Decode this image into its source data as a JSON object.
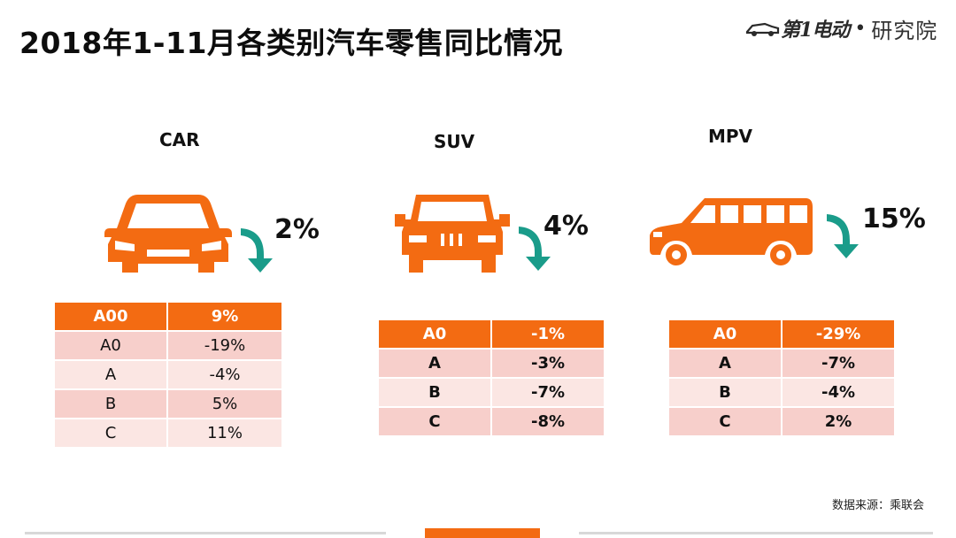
{
  "title": "2018年1-11月各类别汽车零售同比情况",
  "logo": {
    "brand": "第1电动",
    "separator": "•",
    "institute": "研究院"
  },
  "colors": {
    "accent": "#f36b12",
    "arrow": "#1a9c8a",
    "row_dark": "#f7cfcb",
    "row_light": "#fbe6e3"
  },
  "panels": {
    "car": {
      "name": "CAR",
      "change": "2%",
      "icon": "sedan-front-icon",
      "arrow": "down-arrow-icon",
      "rows": [
        [
          "A00",
          "9%"
        ],
        [
          "A0",
          "-19%"
        ],
        [
          "A",
          "-4%"
        ],
        [
          "B",
          "5%"
        ],
        [
          "C",
          "11%"
        ]
      ]
    },
    "suv": {
      "name": "SUV",
      "change": "4%",
      "icon": "suv-front-icon",
      "arrow": "down-arrow-icon",
      "rows": [
        [
          "A0",
          "-1%"
        ],
        [
          "A",
          "-3%"
        ],
        [
          "B",
          "-7%"
        ],
        [
          "C",
          "-8%"
        ]
      ]
    },
    "mpv": {
      "name": "MPV",
      "change": "15%",
      "icon": "minivan-side-icon",
      "arrow": "down-arrow-icon",
      "rows": [
        [
          "A0",
          "-29%"
        ],
        [
          "A",
          "-7%"
        ],
        [
          "B",
          "-4%"
        ],
        [
          "C",
          "2%"
        ]
      ]
    }
  },
  "source": "数据来源：乘联会"
}
